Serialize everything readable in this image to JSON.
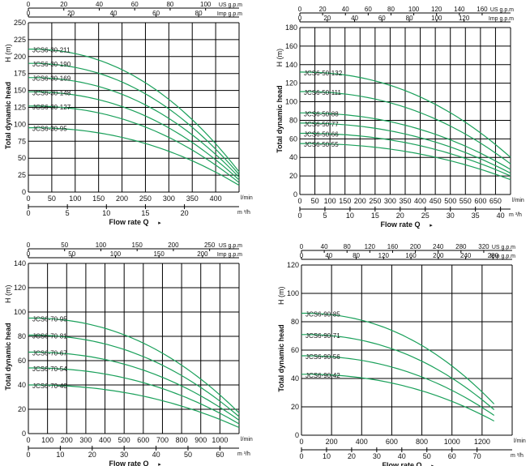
{
  "chart_data": [
    {
      "type": "line",
      "title": "JCS6-30",
      "ylabel": "Total dynamic head",
      "ylabel_unit": "H (m)",
      "xlabel": "Flow rate Q",
      "x_unit_lmin": "l/min",
      "x_unit_m3h": "m ³/h",
      "top_unit_us": "US g.p.m",
      "top_unit_imp": "Imp g.p.m",
      "xlim": [
        0,
        450
      ],
      "ylim": [
        0,
        250
      ],
      "y_ticks": [
        0,
        25,
        50,
        75,
        100,
        125,
        150,
        175,
        200,
        225,
        250
      ],
      "x_ticks_lmin": [
        0,
        50,
        100,
        150,
        200,
        250,
        300,
        350,
        400
      ],
      "x_ticks_m3h": [
        0,
        5,
        10,
        15,
        20
      ],
      "top_ticks_us": [
        0,
        20,
        40,
        60,
        80,
        100
      ],
      "top_ticks_imp": [
        0,
        20,
        40,
        60,
        80
      ],
      "series": [
        {
          "name": "JCS6-30-211",
          "shutoff": 211,
          "endflow": 450,
          "endhead": 30
        },
        {
          "name": "JCS6-30-190",
          "shutoff": 190,
          "endflow": 450,
          "endhead": 26
        },
        {
          "name": "JCS6-30-169",
          "shutoff": 169,
          "endflow": 450,
          "endhead": 22
        },
        {
          "name": "JCS6-30-148",
          "shutoff": 148,
          "endflow": 450,
          "endhead": 18
        },
        {
          "name": "JCS6-30-127",
          "shutoff": 127,
          "endflow": 450,
          "endhead": 14
        },
        {
          "name": "JCS6-30-95",
          "shutoff": 95,
          "endflow": 450,
          "endhead": 10
        }
      ]
    },
    {
      "type": "line",
      "title": "JCS6-50",
      "ylabel": "Total dynamic head",
      "ylabel_unit": "H (m)",
      "xlabel": "Flow rate Q",
      "x_unit_lmin": "l/min",
      "x_unit_m3h": "m ³/h",
      "top_unit_us": "US g.p.m",
      "top_unit_imp": "Imp g.p.m",
      "xlim": [
        0,
        700
      ],
      "ylim": [
        0,
        180
      ],
      "y_ticks": [
        0,
        20,
        40,
        60,
        80,
        100,
        120,
        140,
        160,
        180
      ],
      "x_ticks_lmin": [
        0,
        50,
        100,
        150,
        200,
        250,
        300,
        350,
        400,
        450,
        500,
        550,
        600,
        650
      ],
      "x_ticks_m3h": [
        0,
        5,
        10,
        15,
        20,
        25,
        30,
        35,
        40
      ],
      "top_ticks_us": [
        0,
        20,
        40,
        60,
        80,
        100,
        120,
        140,
        160
      ],
      "top_ticks_imp": [
        0,
        20,
        40,
        60,
        80,
        100,
        120
      ],
      "series": [
        {
          "name": "JCS6-50-132",
          "shutoff": 132,
          "endflow": 700,
          "endhead": 40
        },
        {
          "name": "JCS6-50-111",
          "shutoff": 111,
          "endflow": 700,
          "endhead": 33
        },
        {
          "name": "JCS6-50-88",
          "shutoff": 88,
          "endflow": 700,
          "endhead": 27
        },
        {
          "name": "JCS6-50-77",
          "shutoff": 77,
          "endflow": 700,
          "endhead": 23
        },
        {
          "name": "JCS6-50-66",
          "shutoff": 66,
          "endflow": 700,
          "endhead": 20
        },
        {
          "name": "JCS6-50-55",
          "shutoff": 55,
          "endflow": 700,
          "endhead": 16
        }
      ]
    },
    {
      "type": "line",
      "title": "JCS6-70",
      "ylabel": "Total dynamic head",
      "ylabel_unit": "H (m)",
      "xlabel": "Flow rate Q",
      "x_unit_lmin": "l/min",
      "x_unit_m3h": "m ³/h",
      "top_unit_us": "US g.p.m",
      "top_unit_imp": "Imp g.p.m",
      "xlim": [
        0,
        1100
      ],
      "ylim": [
        0,
        140
      ],
      "y_ticks": [
        0,
        20,
        40,
        60,
        80,
        100,
        120,
        140
      ],
      "x_ticks_lmin": [
        0,
        100,
        200,
        300,
        400,
        500,
        600,
        700,
        800,
        900,
        1000
      ],
      "x_ticks_m3h": [
        0,
        10,
        20,
        30,
        40,
        50,
        60
      ],
      "top_ticks_us": [
        0,
        50,
        100,
        150,
        200,
        250
      ],
      "top_ticks_imp": [
        0,
        50,
        100,
        150,
        200
      ],
      "series": [
        {
          "name": "JCS6-70-95",
          "shutoff": 95,
          "endflow": 1100,
          "endhead": 17
        },
        {
          "name": "JCS6-70-81",
          "shutoff": 81,
          "endflow": 1100,
          "endhead": 14
        },
        {
          "name": "JCS6-70-67",
          "shutoff": 67,
          "endflow": 1100,
          "endhead": 11
        },
        {
          "name": "JCS6-70-54",
          "shutoff": 54,
          "endflow": 1100,
          "endhead": 8
        },
        {
          "name": "JCS6-70-40",
          "shutoff": 40,
          "endflow": 1100,
          "endhead": 5
        }
      ]
    },
    {
      "type": "line",
      "title": "JCS6-90",
      "ylabel": "Total dynamic head",
      "ylabel_unit": "H (m)",
      "xlabel": "Flow rate Q",
      "x_unit_lmin": "l/min",
      "x_unit_m3h": "m ³/h",
      "top_unit_us": "US g.p.m",
      "top_unit_imp": "Imp g.p.m",
      "xlim": [
        0,
        1400
      ],
      "ylim": [
        0,
        120
      ],
      "y_ticks": [
        0,
        20,
        40,
        60,
        80,
        100,
        120
      ],
      "x_ticks_lmin": [
        0,
        200,
        400,
        600,
        800,
        1000,
        1200
      ],
      "x_ticks_m3h": [
        0,
        10,
        20,
        30,
        40,
        50,
        60,
        70
      ],
      "top_ticks_us": [
        0,
        40,
        80,
        120,
        160,
        200,
        240,
        280,
        320
      ],
      "top_ticks_imp": [
        0,
        40,
        80,
        120,
        160,
        200,
        240,
        280
      ],
      "series": [
        {
          "name": "JCS6-90-85",
          "shutoff": 86,
          "endflow": 1280,
          "endhead": 22
        },
        {
          "name": "JCS6-90-71",
          "shutoff": 71,
          "endflow": 1280,
          "endhead": 18
        },
        {
          "name": "JCS6-90-56",
          "shutoff": 56,
          "endflow": 1280,
          "endhead": 14
        },
        {
          "name": "JCS6-90-42",
          "shutoff": 43,
          "endflow": 1280,
          "endhead": 10
        }
      ]
    }
  ]
}
